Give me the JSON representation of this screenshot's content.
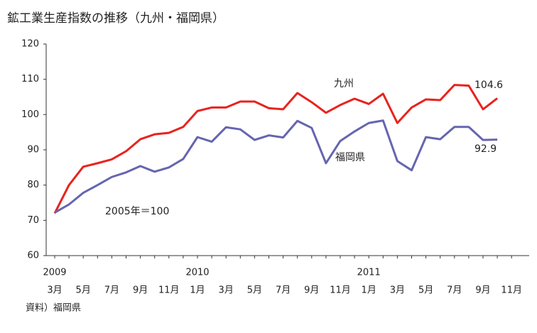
{
  "chart_data": {
    "type": "line",
    "title": "鉱工業生産指数の推移（九州・福岡県）",
    "annotation": "2005年＝100",
    "source": "資料）福岡県",
    "categories": [
      "3月",
      null,
      "5月",
      null,
      "7月",
      null,
      "9月",
      null,
      "11月",
      null,
      "1月",
      null,
      "3月",
      null,
      "5月",
      null,
      "7月",
      null,
      "9月",
      null,
      "11月",
      null,
      "1月",
      null,
      "3月",
      null,
      "5月",
      null,
      "7月",
      null,
      "9月",
      null,
      "11月"
    ],
    "years": [
      "2009",
      null,
      null,
      null,
      null,
      null,
      null,
      null,
      null,
      null,
      "2010",
      null,
      null,
      null,
      null,
      null,
      null,
      null,
      null,
      null,
      null,
      null,
      "2011",
      null,
      null,
      null,
      null,
      null,
      null,
      null,
      null,
      null,
      null
    ],
    "series": [
      {
        "name": "九州",
        "color": "#e8231e",
        "values": [
          72,
          80,
          85.2,
          86.2,
          87.3,
          89.6,
          93,
          94.4,
          94.8,
          96.5,
          101,
          102,
          102,
          103.7,
          103.7,
          101.8,
          101.5,
          106.1,
          103.5,
          100.5,
          102.7,
          104.5,
          103,
          105.9,
          97.6,
          102,
          104.3,
          104.1,
          108.4,
          108.2,
          101.5,
          104.6,
          null
        ]
      },
      {
        "name": "福岡県",
        "color": "#6565b0",
        "values": [
          72.2,
          74.5,
          77.8,
          80,
          82.3,
          83.6,
          85.4,
          83.8,
          85,
          87.4,
          93.6,
          92.3,
          96.4,
          95.8,
          92.8,
          94.1,
          93.5,
          98.2,
          96.2,
          86.2,
          92.5,
          95.2,
          97.6,
          98.3,
          86.8,
          84.2,
          93.6,
          93,
          96.5,
          96.5,
          92.8,
          92.9,
          null
        ]
      }
    ],
    "ylim": [
      60,
      120
    ],
    "yticks": [
      60,
      70,
      80,
      90,
      100,
      110,
      120
    ],
    "grid": false
  }
}
